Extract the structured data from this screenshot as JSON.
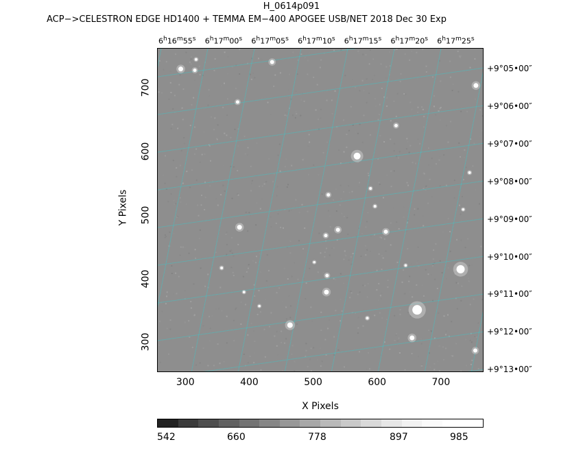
{
  "header": {
    "title": "H_0614p091",
    "subtitle": "ACP−>CELESTRON EDGE HD1400 + TEMMA EM−400 APOGEE USB/NET   2018 Dec 30    Exp"
  },
  "plot": {
    "xlabel": "X Pixels",
    "ylabel": "Y Pixels",
    "x_ticks": [
      "300",
      "400",
      "500",
      "600",
      "700"
    ],
    "y_ticks": [
      "300",
      "400",
      "500",
      "600",
      "700"
    ],
    "ra_labels": [
      {
        "h": "6",
        "m": "16",
        "s": "55"
      },
      {
        "h": "6",
        "m": "17",
        "s": "00"
      },
      {
        "h": "6",
        "m": "17",
        "s": "05"
      },
      {
        "h": "6",
        "m": "17",
        "s": "10"
      },
      {
        "h": "6",
        "m": "17",
        "s": "15"
      },
      {
        "h": "6",
        "m": "17",
        "s": "20"
      },
      {
        "h": "6",
        "m": "17",
        "s": "25"
      }
    ],
    "dec_labels": [
      "+9°05•00″",
      "+9°06•00″",
      "+9°07•00″",
      "+9°08•00″",
      "+9°09•00″",
      "+9°10•00″",
      "+9°11•00″",
      "+9°12•00″",
      "+9°13•00″"
    ],
    "grid_color": "#38c9cc",
    "background_gray": "#8e8e8e"
  },
  "colorbar": {
    "labels": [
      "542",
      "660",
      "778",
      "897",
      "985"
    ],
    "colors": [
      "#222222",
      "#3b3b3b",
      "#4e4e4e",
      "#616161",
      "#737373",
      "#868686",
      "#979797",
      "#a8a8a8",
      "#b9b9b9",
      "#c9c9c9",
      "#d9d9d9",
      "#e7e7e7",
      "#f2f2f2",
      "#fafafa",
      "#ffffff",
      "#ffffff"
    ]
  },
  "stars": [
    {
      "x": 291,
      "y": 733,
      "r": 3.5
    },
    {
      "x": 313,
      "y": 731,
      "r": 2.5
    },
    {
      "x": 315,
      "y": 748,
      "r": 2
    },
    {
      "x": 434,
      "y": 744,
      "r": 3
    },
    {
      "x": 753,
      "y": 707,
      "r": 3.5
    },
    {
      "x": 380,
      "y": 681,
      "r": 2.5
    },
    {
      "x": 567,
      "y": 596,
      "r": 5
    },
    {
      "x": 522,
      "y": 535,
      "r": 2.5
    },
    {
      "x": 383,
      "y": 484,
      "r": 3.5
    },
    {
      "x": 537,
      "y": 480,
      "r": 3
    },
    {
      "x": 518,
      "y": 471,
      "r": 2.5
    },
    {
      "x": 612,
      "y": 477,
      "r": 3
    },
    {
      "x": 729,
      "y": 418,
      "r": 6
    },
    {
      "x": 520,
      "y": 408,
      "r": 2.5
    },
    {
      "x": 519,
      "y": 382,
      "r": 3.5
    },
    {
      "x": 462,
      "y": 330,
      "r": 4
    },
    {
      "x": 661,
      "y": 354,
      "r": 7
    },
    {
      "x": 653,
      "y": 310,
      "r": 3.5
    },
    {
      "x": 752,
      "y": 290,
      "r": 3
    },
    {
      "x": 588,
      "y": 545,
      "r": 2
    },
    {
      "x": 628,
      "y": 644,
      "r": 2.5
    },
    {
      "x": 743,
      "y": 570,
      "r": 2
    },
    {
      "x": 595,
      "y": 517,
      "r": 2
    },
    {
      "x": 355,
      "y": 420,
      "r": 2
    },
    {
      "x": 583,
      "y": 341,
      "r": 2
    },
    {
      "x": 733,
      "y": 512,
      "r": 1.8
    },
    {
      "x": 414,
      "y": 360,
      "r": 1.8
    },
    {
      "x": 390,
      "y": 382,
      "r": 1.8
    },
    {
      "x": 500,
      "y": 429,
      "r": 1.8
    },
    {
      "x": 643,
      "y": 424,
      "r": 1.8
    }
  ]
}
